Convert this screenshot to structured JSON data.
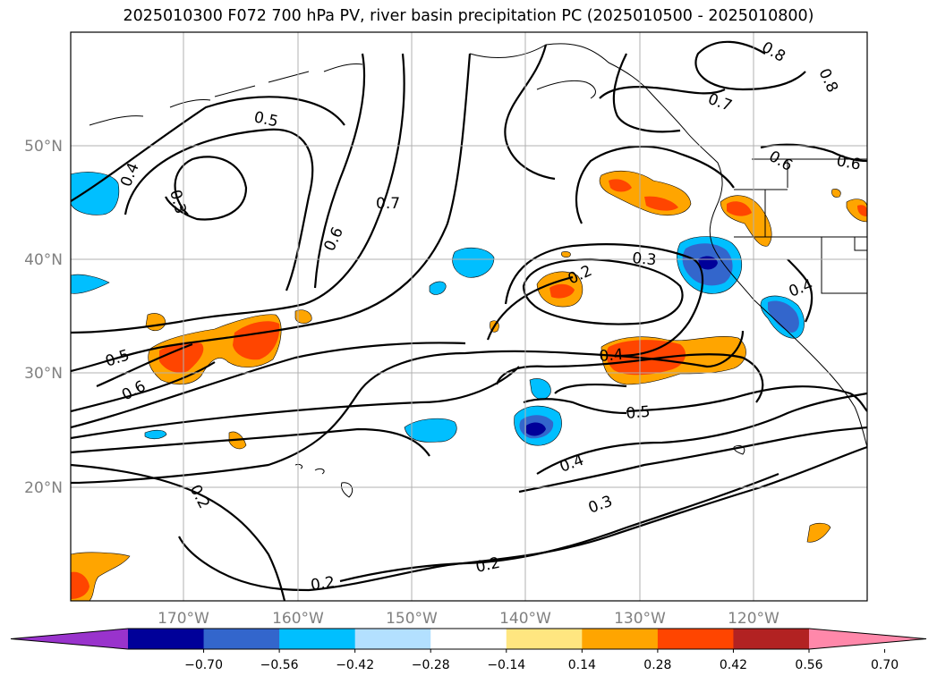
{
  "title": "2025010300 F072 700 hPa PV, river basin precipitation PC (2025010500 - 2025010800)",
  "map": {
    "lat_labels": [
      "50°N",
      "40°N",
      "30°N",
      "20°N"
    ],
    "lon_labels": [
      "170°W",
      "160°W",
      "150°W",
      "140°W",
      "130°W",
      "120°W"
    ],
    "contour_labels": [
      {
        "id": "c1",
        "text": "0.5"
      },
      {
        "id": "c2",
        "text": "0.4"
      },
      {
        "id": "c3",
        "text": "0.3"
      },
      {
        "id": "c4",
        "text": "0.7"
      },
      {
        "id": "c5",
        "text": "0.6"
      },
      {
        "id": "c6",
        "text": "0.8"
      },
      {
        "id": "c7",
        "text": "0.8"
      },
      {
        "id": "c8",
        "text": "0.7"
      },
      {
        "id": "c9",
        "text": "0.6"
      },
      {
        "id": "c10",
        "text": "0.6"
      },
      {
        "id": "c11",
        "text": "0.3"
      },
      {
        "id": "c12",
        "text": "0.2"
      },
      {
        "id": "c13",
        "text": "0.4"
      },
      {
        "id": "c14",
        "text": "0.4"
      },
      {
        "id": "c15",
        "text": "0.5"
      },
      {
        "id": "c16",
        "text": "0.5"
      },
      {
        "id": "c17",
        "text": "0.6"
      },
      {
        "id": "c18",
        "text": "0.4"
      },
      {
        "id": "c19",
        "text": "0.3"
      },
      {
        "id": "c20",
        "text": "0.2"
      },
      {
        "id": "c21",
        "text": "0.2"
      },
      {
        "id": "c22",
        "text": "0.2"
      }
    ]
  },
  "colorbar": {
    "colors": [
      "#9933cc",
      "#000099",
      "#3366cc",
      "#00bfff",
      "#b3e0ff",
      "#ffffff",
      "#ffe680",
      "#ffa500",
      "#ff4500",
      "#b22222",
      "#ff88aa"
    ],
    "ticks": [
      "−0.70",
      "−0.56",
      "−0.42",
      "−0.28",
      "−0.14",
      "0.14",
      "0.28",
      "0.42",
      "0.56",
      "0.70"
    ]
  }
}
